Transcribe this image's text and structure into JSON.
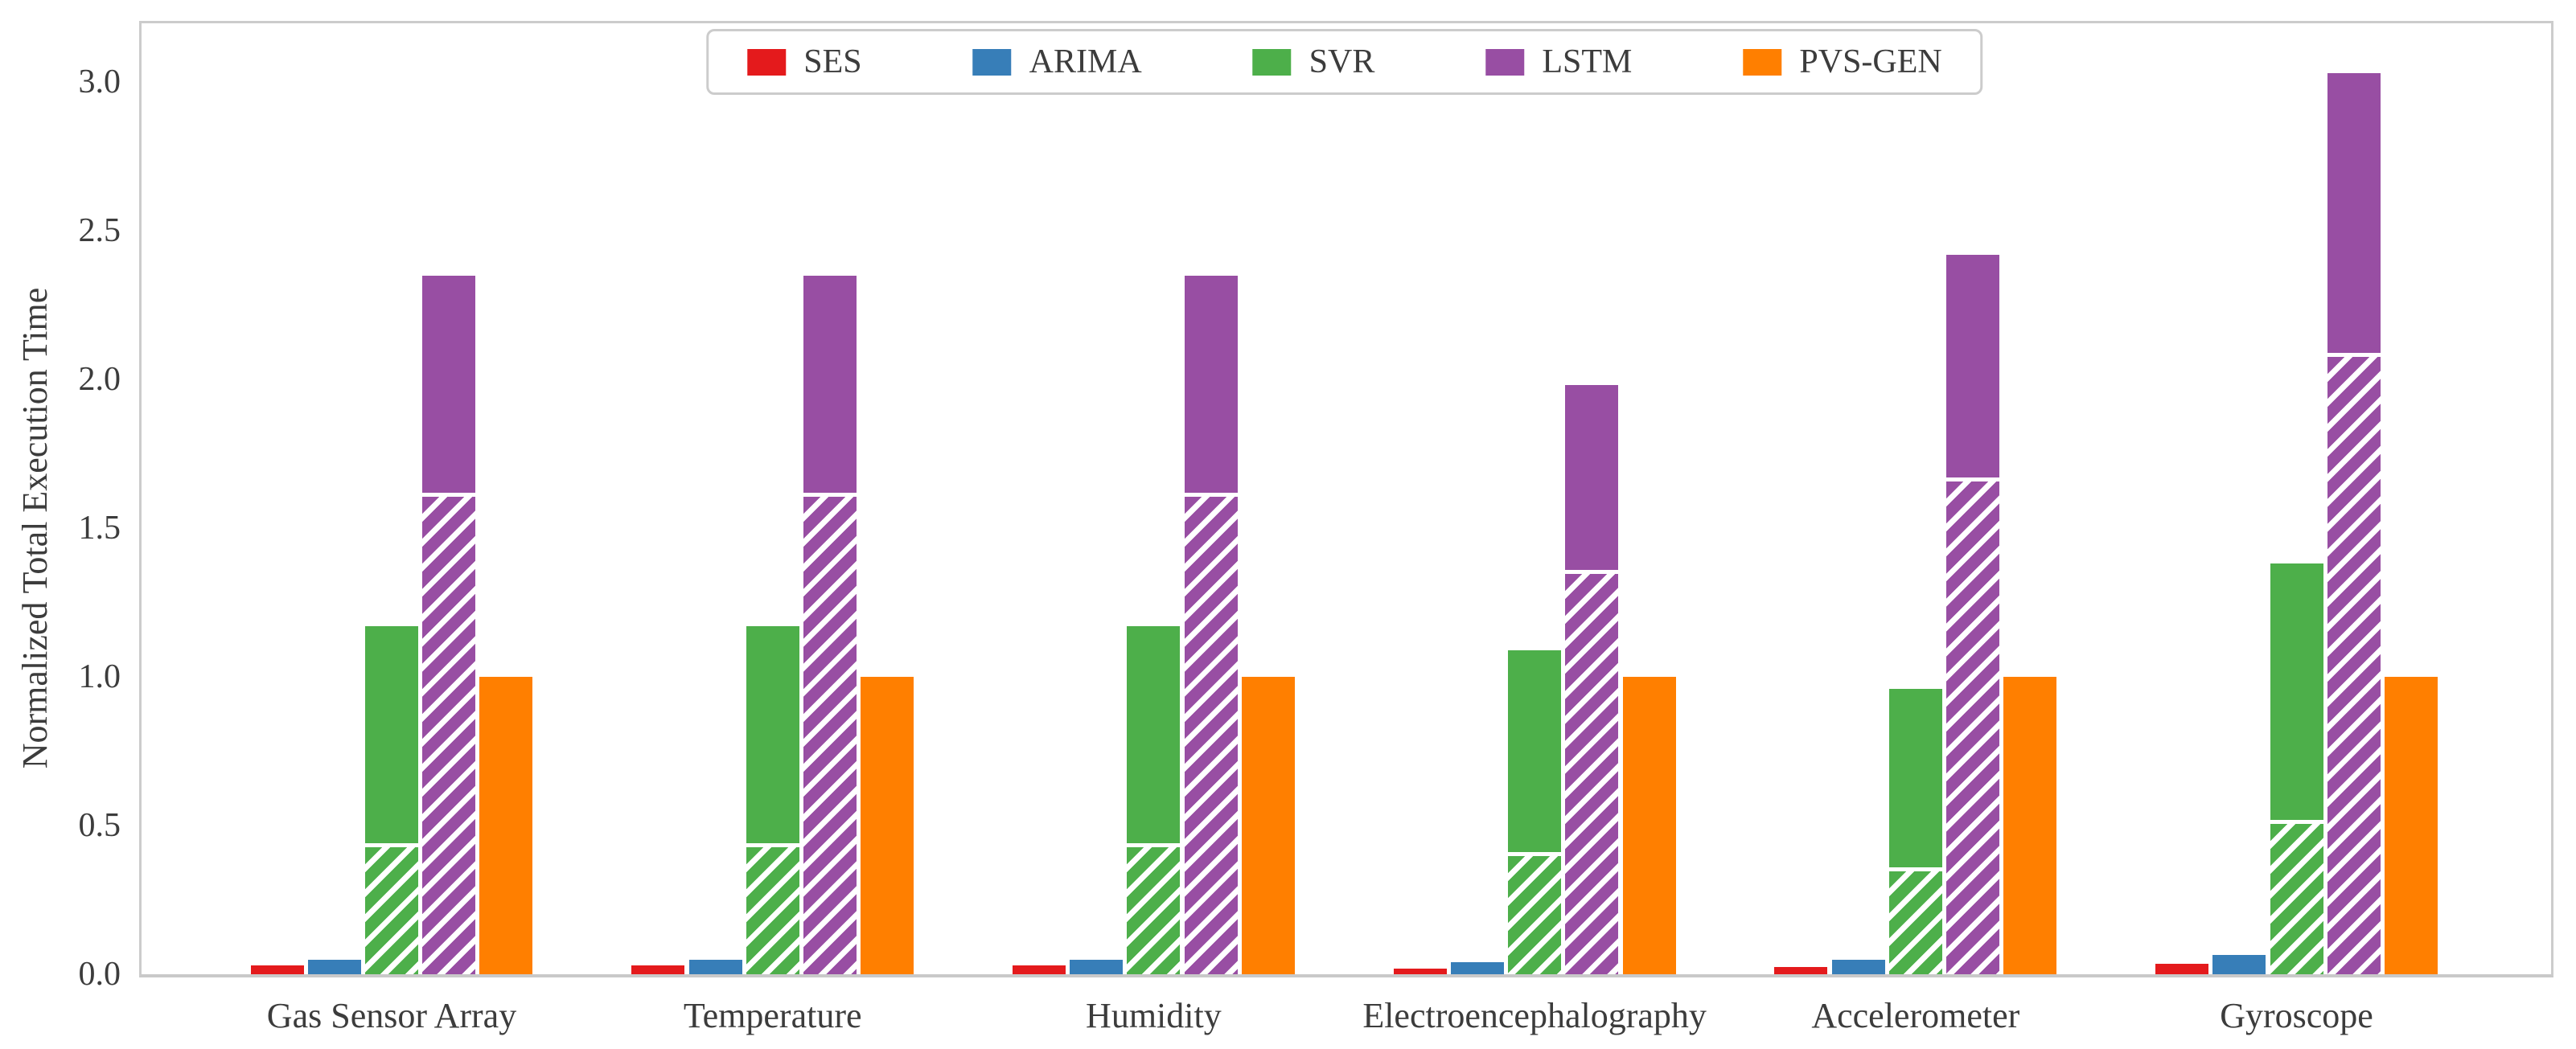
{
  "chart_data": {
    "type": "bar",
    "title": "",
    "xlabel": "",
    "ylabel": "Normalized Total Execution Time",
    "ylim": [
      0,
      3.2
    ],
    "ytick_labels": [
      "0.0",
      "0.5",
      "1.0",
      "1.5",
      "2.0",
      "2.5",
      "3.0"
    ],
    "ytick_values": [
      0.0,
      0.5,
      1.0,
      1.5,
      2.0,
      2.5,
      3.0
    ],
    "grid": false,
    "legend_position": "upper center",
    "categories": [
      "Gas Sensor Array",
      "Temperature",
      "Humidity",
      "Electroencephalography",
      "Accelerometer",
      "Gyroscope"
    ],
    "series": [
      {
        "name": "SES",
        "color": "#e41a1c",
        "totals": [
          0.03,
          0.03,
          0.03,
          0.02,
          0.025,
          0.035
        ],
        "hatched_portion": [
          0,
          0,
          0,
          0,
          0,
          0
        ]
      },
      {
        "name": "ARIMA",
        "color": "#377eb8",
        "totals": [
          0.05,
          0.05,
          0.05,
          0.04,
          0.05,
          0.065
        ],
        "hatched_portion": [
          0,
          0,
          0,
          0,
          0,
          0
        ]
      },
      {
        "name": "SVR",
        "color": "#4daf4a",
        "totals": [
          1.17,
          1.17,
          1.17,
          1.09,
          0.96,
          1.38
        ],
        "hatched_portion": [
          0.44,
          0.44,
          0.44,
          0.41,
          0.36,
          0.52
        ]
      },
      {
        "name": "LSTM",
        "color": "#984ea3",
        "totals": [
          2.35,
          2.35,
          2.35,
          1.98,
          2.42,
          3.03
        ],
        "hatched_portion": [
          1.62,
          1.62,
          1.62,
          1.36,
          1.67,
          2.09
        ]
      },
      {
        "name": "PVS-GEN",
        "color": "#ff7f00",
        "totals": [
          1.0,
          1.0,
          1.0,
          1.0,
          1.0,
          1.0
        ],
        "hatched_portion": [
          0,
          0,
          0,
          0,
          0,
          0
        ]
      }
    ],
    "hatch_style": "white diagonal stripes (///) on lower portion of SVR and LSTM bars"
  }
}
